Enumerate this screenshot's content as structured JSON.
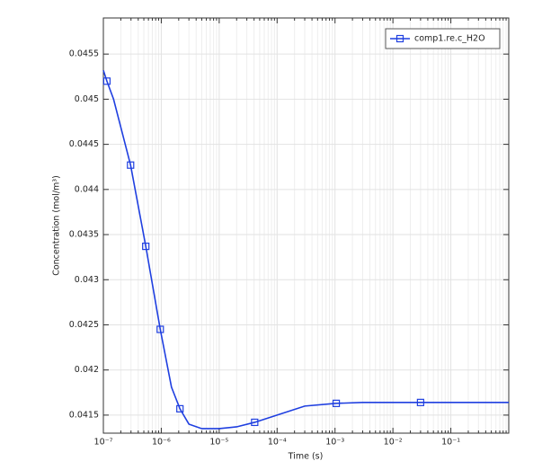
{
  "chart_data": {
    "type": "line",
    "xlabel": "Time (s)",
    "ylabel": "Concentration (mol/m³)",
    "xscale": "log",
    "grid": true,
    "minor_grid": true,
    "legend_loc": "upper right",
    "xlim": [
      1e-07,
      1
    ],
    "ylim": [
      0.0413,
      0.0459
    ],
    "xticks": [
      {
        "value": 1e-07,
        "label": "10⁻⁷"
      },
      {
        "value": 1e-06,
        "label": "10⁻⁶"
      },
      {
        "value": 1e-05,
        "label": "10⁻⁵"
      },
      {
        "value": 0.0001,
        "label": "10⁻⁴"
      },
      {
        "value": 0.001,
        "label": "10⁻³"
      },
      {
        "value": 0.01,
        "label": "10⁻²"
      },
      {
        "value": 0.1,
        "label": "10⁻¹"
      }
    ],
    "yticks": [
      0.0415,
      0.042,
      0.0425,
      0.043,
      0.0435,
      0.044,
      0.0445,
      0.045,
      0.0455
    ],
    "series": [
      {
        "name": "comp1.re.c_H2O",
        "color": "#1f3fe0",
        "x": [
          1e-07,
          1.15e-07,
          1.5e-07,
          2.95e-07,
          5.4e-07,
          9.6e-07,
          1.5e-06,
          2.1e-06,
          3e-06,
          5e-06,
          1e-05,
          2e-05,
          4.1e-05,
          0.0001,
          0.0003,
          0.00105,
          0.003,
          0.03,
          1
        ],
        "values": [
          0.04532,
          0.0452,
          0.045,
          0.04427,
          0.04337,
          0.04245,
          0.04181,
          0.04157,
          0.0414,
          0.04135,
          0.04135,
          0.04137,
          0.04142,
          0.0415,
          0.0416,
          0.04163,
          0.04164,
          0.04164,
          0.04164
        ],
        "markers": {
          "x": [
            1.15e-07,
            2.95e-07,
            5.4e-07,
            9.6e-07,
            2.1e-06,
            4.1e-05,
            0.00105,
            0.03
          ],
          "values": [
            0.0452,
            0.04427,
            0.04337,
            0.04245,
            0.04157,
            0.04142,
            0.04163,
            0.04164
          ]
        }
      }
    ]
  }
}
